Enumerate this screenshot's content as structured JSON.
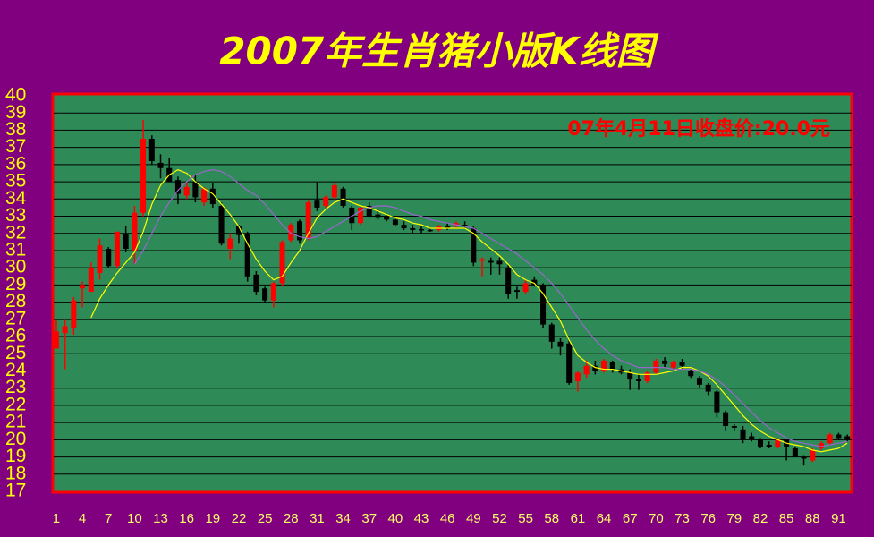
{
  "chart_data": {
    "type": "candlestick",
    "title": "2007年生肖猪小版K线图",
    "annotation": "07年4月11日收盘价:20.0元",
    "x": [
      1,
      2,
      3,
      4,
      5,
      6,
      7,
      8,
      9,
      10,
      11,
      12,
      13,
      14,
      15,
      16,
      17,
      18,
      19,
      20,
      21,
      22,
      23,
      24,
      25,
      26,
      27,
      28,
      29,
      30,
      31,
      32,
      33,
      34,
      35,
      36,
      37,
      38,
      39,
      40,
      41,
      42,
      43,
      44,
      45,
      46,
      47,
      48,
      49,
      50,
      51,
      52,
      53,
      54,
      55,
      56,
      57,
      58,
      59,
      60,
      61,
      62,
      63,
      64,
      65,
      66,
      67,
      68,
      69,
      70,
      71,
      72,
      73,
      74,
      75,
      76,
      77,
      78,
      79,
      80,
      81,
      82,
      83,
      84,
      85,
      86,
      87,
      88,
      89,
      90,
      91,
      92
    ],
    "open": [
      25.3,
      26.2,
      26.5,
      28.8,
      28.6,
      29.7,
      31.1,
      30.1,
      32.0,
      31.0,
      33.2,
      37.5,
      36.1,
      35.8,
      35.1,
      34.2,
      35.0,
      33.8,
      34.6,
      33.6,
      31.1,
      32.4,
      32.0,
      29.6,
      28.8,
      28.1,
      29.1,
      31.6,
      32.7,
      31.7,
      33.9,
      33.6,
      34.1,
      34.6,
      33.5,
      32.6,
      33.6,
      33.1,
      33.0,
      32.8,
      32.5,
      32.3,
      32.25,
      32.2,
      32.2,
      32.4,
      32.4,
      32.5,
      32.3,
      30.4,
      30.4,
      30.4,
      30.0,
      28.7,
      28.6,
      29.3,
      29.0,
      26.7,
      25.7,
      25.6,
      23.4,
      23.8,
      24.3,
      24.0,
      24.5,
      24.1,
      23.9,
      23.5,
      23.4,
      23.9,
      24.6,
      24.2,
      24.5,
      24.0,
      23.6,
      23.2,
      22.8,
      21.6,
      20.8,
      20.6,
      20.2,
      20.0,
      19.7,
      19.6,
      20.0,
      19.5,
      19.0,
      18.8,
      19.5,
      19.8,
      20.3,
      20.2
    ],
    "high": [
      27.0,
      27.0,
      28.3,
      29.2,
      30.3,
      31.7,
      31.2,
      32.1,
      32.4,
      33.6,
      38.6,
      37.7,
      36.6,
      36.4,
      35.3,
      34.9,
      35.4,
      34.7,
      34.9,
      33.8,
      32.0,
      32.5,
      32.1,
      29.8,
      28.9,
      29.2,
      31.6,
      32.6,
      32.8,
      33.9,
      35.0,
      34.2,
      34.9,
      34.7,
      33.6,
      33.6,
      33.8,
      33.4,
      33.1,
      33.0,
      32.7,
      32.5,
      32.4,
      32.3,
      32.5,
      32.6,
      32.7,
      32.7,
      32.4,
      30.6,
      30.6,
      30.6,
      30.2,
      28.9,
      29.3,
      29.5,
      29.1,
      26.8,
      25.9,
      25.8,
      24.0,
      24.6,
      24.6,
      24.7,
      24.6,
      24.3,
      24.1,
      23.8,
      24.0,
      24.7,
      24.8,
      24.6,
      24.7,
      24.1,
      23.7,
      23.3,
      22.9,
      21.7,
      20.9,
      20.8,
      20.4,
      20.1,
      19.9,
      20.1,
      20.1,
      19.6,
      19.1,
      19.5,
      19.9,
      20.4,
      20.4,
      20.3
    ],
    "low": [
      25.3,
      24.1,
      26.1,
      27.7,
      28.6,
      29.3,
      30.0,
      30.0,
      30.9,
      30.2,
      33.0,
      36.0,
      35.2,
      35.0,
      33.7,
      34.0,
      33.8,
      33.6,
      33.5,
      31.3,
      30.5,
      31.4,
      29.2,
      28.4,
      28.0,
      27.7,
      28.9,
      31.5,
      31.4,
      31.6,
      33.3,
      33.5,
      34.0,
      33.5,
      32.2,
      32.5,
      32.9,
      32.8,
      32.7,
      32.4,
      32.2,
      32.0,
      32.0,
      32.1,
      32.1,
      32.2,
      32.3,
      32.3,
      30.1,
      29.5,
      29.6,
      29.6,
      28.2,
      28.2,
      28.5,
      28.9,
      26.5,
      25.3,
      24.9,
      23.2,
      22.8,
      23.6,
      23.8,
      23.9,
      23.9,
      23.8,
      22.9,
      22.9,
      23.3,
      23.8,
      24.2,
      24.1,
      24.1,
      23.6,
      23.0,
      22.6,
      21.3,
      20.5,
      20.5,
      19.8,
      19.9,
      19.5,
      19.5,
      19.5,
      18.8,
      19.0,
      18.5,
      18.7,
      19.4,
      19.7,
      20.0,
      19.9
    ],
    "close": [
      26.3,
      26.6,
      28.1,
      29.0,
      30.0,
      31.3,
      30.1,
      32.1,
      31.1,
      33.2,
      37.5,
      36.2,
      35.8,
      35.0,
      34.3,
      34.7,
      34.1,
      34.6,
      33.7,
      31.4,
      31.7,
      31.9,
      29.5,
      28.6,
      28.1,
      29.1,
      31.5,
      32.5,
      31.6,
      33.8,
      33.5,
      34.1,
      34.8,
      33.6,
      32.6,
      33.5,
      33.0,
      32.9,
      32.8,
      32.5,
      32.3,
      32.2,
      32.2,
      32.15,
      32.4,
      32.3,
      32.6,
      32.4,
      30.3,
      30.5,
      30.3,
      30.2,
      28.5,
      28.6,
      29.1,
      29.0,
      26.7,
      25.7,
      25.4,
      23.3,
      23.9,
      24.3,
      24.0,
      24.6,
      24.1,
      23.9,
      23.5,
      23.4,
      23.9,
      24.6,
      24.4,
      24.5,
      24.3,
      23.7,
      23.2,
      22.8,
      21.6,
      20.8,
      20.7,
      20.0,
      20.0,
      19.6,
      19.6,
      20.0,
      19.6,
      19.0,
      18.9,
      19.4,
      19.8,
      20.3,
      20.1,
      20.0
    ],
    "up_color": "#ff0000",
    "down_color": "#000000",
    "series": [
      {
        "color": "#ffff00",
        "values": [
          null,
          null,
          null,
          null,
          27.1,
          28.2,
          29.0,
          29.7,
          30.3,
          30.9,
          32.1,
          33.7,
          34.8,
          35.4,
          35.7,
          35.5,
          35.0,
          34.6,
          34.3,
          33.7,
          33.1,
          32.4,
          31.4,
          30.5,
          29.8,
          29.3,
          29.5,
          30.3,
          31.0,
          32.0,
          32.9,
          33.4,
          33.8,
          34.0,
          33.8,
          33.6,
          33.5,
          33.3,
          33.1,
          32.9,
          32.8,
          32.6,
          32.5,
          32.3,
          32.3,
          32.3,
          32.3,
          32.3,
          32.0,
          31.5,
          31.1,
          30.7,
          30.2,
          29.6,
          29.3,
          29.1,
          28.5,
          27.7,
          26.9,
          25.8,
          24.9,
          24.5,
          24.2,
          24.1,
          24.1,
          24.0,
          23.9,
          23.8,
          23.8,
          23.8,
          23.9,
          24.0,
          24.2,
          24.2,
          24.0,
          23.7,
          23.2,
          22.6,
          22.0,
          21.4,
          20.9,
          20.5,
          20.2,
          20.0,
          19.8,
          19.7,
          19.6,
          19.4,
          19.3,
          19.4,
          19.5,
          19.8
        ]
      },
      {
        "color": "#9966cc",
        "values": [
          null,
          null,
          null,
          null,
          null,
          null,
          null,
          null,
          null,
          30.2,
          31.0,
          32.0,
          33.0,
          33.8,
          34.5,
          35.0,
          35.4,
          35.6,
          35.7,
          35.6,
          35.3,
          34.9,
          34.5,
          34.2,
          33.7,
          33.1,
          32.5,
          32.0,
          31.8,
          31.7,
          31.8,
          32.1,
          32.4,
          32.7,
          33.0,
          33.3,
          33.5,
          33.6,
          33.6,
          33.5,
          33.3,
          33.1,
          33.0,
          32.8,
          32.7,
          32.6,
          32.5,
          32.4,
          32.3,
          32.0,
          31.7,
          31.4,
          31.1,
          30.8,
          30.4,
          30.0,
          29.6,
          29.1,
          28.5,
          27.8,
          27.1,
          26.4,
          25.8,
          25.3,
          24.9,
          24.6,
          24.4,
          24.2,
          24.2,
          24.2,
          24.2,
          24.1,
          24.1,
          24.1,
          24.0,
          23.8,
          23.5,
          23.1,
          22.6,
          22.1,
          21.6,
          21.1,
          20.7,
          20.4,
          20.1,
          19.9,
          19.8,
          19.7,
          19.6,
          19.7,
          19.8,
          19.9
        ]
      }
    ],
    "xlim": [
      0.7,
      92.5
    ],
    "xticks": [
      1,
      4,
      7,
      10,
      13,
      16,
      19,
      22,
      25,
      28,
      31,
      34,
      37,
      40,
      43,
      46,
      49,
      52,
      55,
      58,
      61,
      64,
      67,
      70,
      73,
      76,
      79,
      82,
      85,
      88,
      91
    ],
    "ylim": [
      17,
      40
    ],
    "yticks": [
      17,
      18,
      19,
      20,
      21,
      22,
      23,
      24,
      25,
      26,
      27,
      28,
      29,
      30,
      31,
      32,
      33,
      34,
      35,
      36,
      37,
      38,
      39,
      40
    ],
    "grid": true
  }
}
